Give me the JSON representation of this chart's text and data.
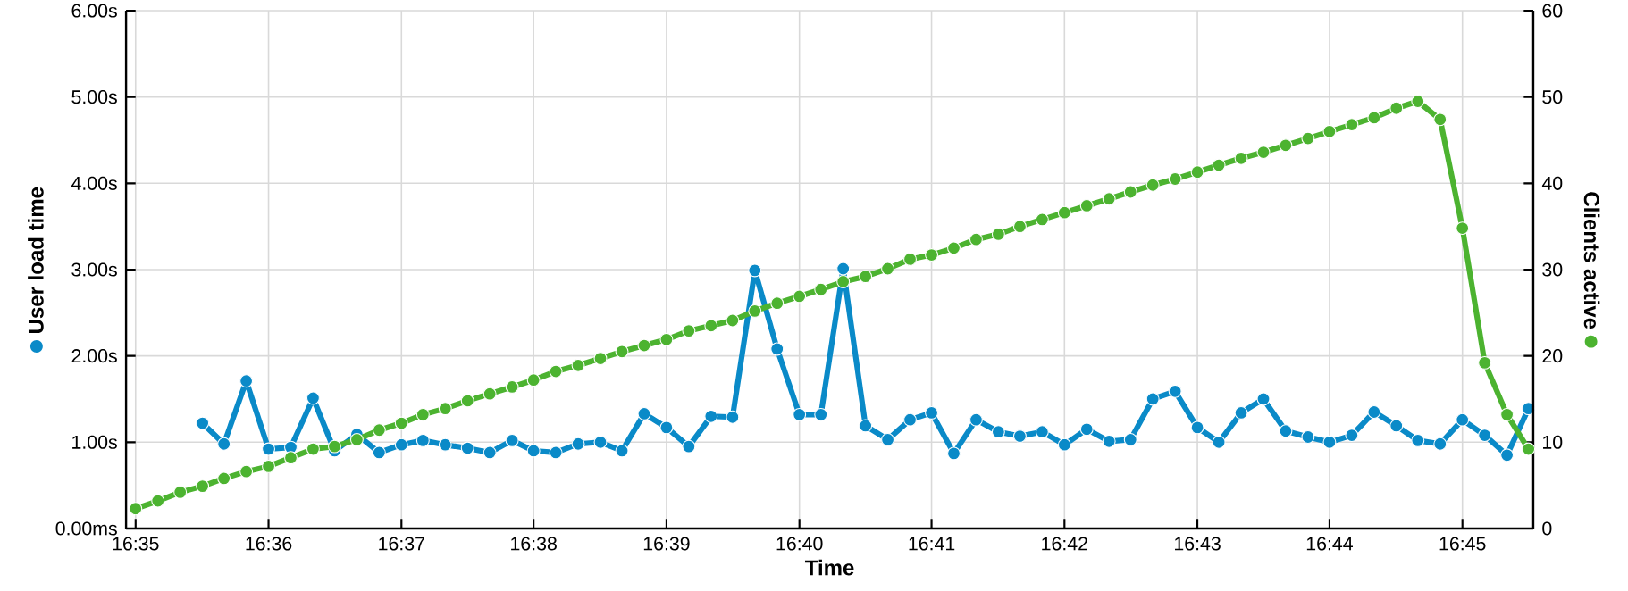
{
  "chart_data": {
    "type": "line",
    "xlabel": "Time",
    "ylabel": "User load time",
    "y2label": "Clients active",
    "x": [
      16.5833,
      16.5861,
      16.5889,
      16.5917,
      16.5944,
      16.5972,
      16.6,
      16.6028,
      16.6056,
      16.6083,
      16.6111,
      16.6139,
      16.6167,
      16.6194,
      16.6222,
      16.625,
      16.6278,
      16.6306,
      16.6333,
      16.6361,
      16.6389,
      16.6417,
      16.6444,
      16.6472,
      16.65,
      16.6528,
      16.6556,
      16.6583,
      16.6611,
      16.6639,
      16.6667,
      16.6694,
      16.6722,
      16.675,
      16.6778,
      16.6806,
      16.6833,
      16.6861,
      16.6889,
      16.6917,
      16.6944,
      16.6972,
      16.7,
      16.7028,
      16.7056,
      16.7083,
      16.7111,
      16.7139,
      16.7167,
      16.7194,
      16.7222,
      16.725,
      16.7278,
      16.7306,
      16.7333,
      16.7361,
      16.7389,
      16.7417,
      16.7444,
      16.7472,
      16.75,
      16.7528,
      16.7556,
      16.7583
    ],
    "series": [
      {
        "color": "#0a8ac8",
        "values": [
          null,
          null,
          null,
          1.22,
          0.98,
          1.71,
          0.92,
          0.94,
          1.51,
          0.9,
          1.09,
          0.88,
          0.97,
          1.02,
          0.97,
          0.93,
          0.88,
          1.02,
          0.9,
          0.88,
          0.98,
          1.0,
          0.9,
          1.33,
          1.17,
          0.95,
          1.3,
          1.29,
          2.99,
          2.08,
          1.32,
          1.32,
          3.01,
          1.19,
          1.03,
          1.26,
          1.34,
          0.87,
          1.26,
          1.12,
          1.07,
          1.12,
          0.97,
          1.15,
          1.01,
          1.03,
          1.5,
          1.59,
          1.17,
          1.0,
          1.34,
          1.5,
          1.13,
          1.06,
          1.0,
          1.08,
          1.35,
          1.19,
          1.02,
          0.98,
          1.26,
          1.08,
          0.85,
          1.39
        ]
      },
      {
        "color": "#4cb330",
        "axis": "y2",
        "values": [
          2.3,
          3.2,
          4.2,
          4.9,
          5.8,
          6.6,
          7.2,
          8.2,
          9.2,
          9.5,
          10.3,
          11.4,
          12.2,
          13.2,
          13.9,
          14.8,
          15.6,
          16.4,
          17.2,
          18.2,
          18.9,
          19.7,
          20.5,
          21.2,
          21.9,
          22.9,
          23.5,
          24.1,
          25.2,
          26.1,
          26.9,
          27.7,
          28.6,
          29.2,
          30.1,
          31.2,
          31.7,
          32.5,
          33.5,
          34.1,
          35.0,
          35.8,
          36.6,
          37.4,
          38.2,
          39.0,
          39.8,
          40.5,
          41.3,
          42.1,
          42.9,
          43.6,
          44.4,
          45.2,
          46.0,
          46.8,
          47.6,
          48.7,
          49.5,
          47.4,
          34.8,
          19.2,
          13.2,
          9.2
        ]
      }
    ],
    "xlim": [
      16.5821,
      16.7589
    ],
    "xticks": [
      {
        "value": 16.5833,
        "label": "16:35"
      },
      {
        "value": 16.6,
        "label": "16:36"
      },
      {
        "value": 16.6167,
        "label": "16:37"
      },
      {
        "value": 16.6333,
        "label": "16:38"
      },
      {
        "value": 16.65,
        "label": "16:39"
      },
      {
        "value": 16.6667,
        "label": "16:40"
      },
      {
        "value": 16.6833,
        "label": "16:41"
      },
      {
        "value": 16.7,
        "label": "16:42"
      },
      {
        "value": 16.7167,
        "label": "16:43"
      },
      {
        "value": 16.7333,
        "label": "16:44"
      },
      {
        "value": 16.75,
        "label": "16:45"
      }
    ],
    "ylim": [
      0,
      6
    ],
    "yticks": [
      {
        "value": 0,
        "label": "0.00ms"
      },
      {
        "value": 1,
        "label": "1.00s"
      },
      {
        "value": 2,
        "label": "2.00s"
      },
      {
        "value": 3,
        "label": "3.00s"
      },
      {
        "value": 4,
        "label": "4.00s"
      },
      {
        "value": 5,
        "label": "5.00s"
      },
      {
        "value": 6,
        "label": "6.00s"
      }
    ],
    "y2lim": [
      0,
      60
    ],
    "y2ticks": [
      0,
      10,
      20,
      30,
      40,
      50,
      60
    ],
    "grid": true,
    "marker": "circle",
    "line_style": "solid"
  }
}
